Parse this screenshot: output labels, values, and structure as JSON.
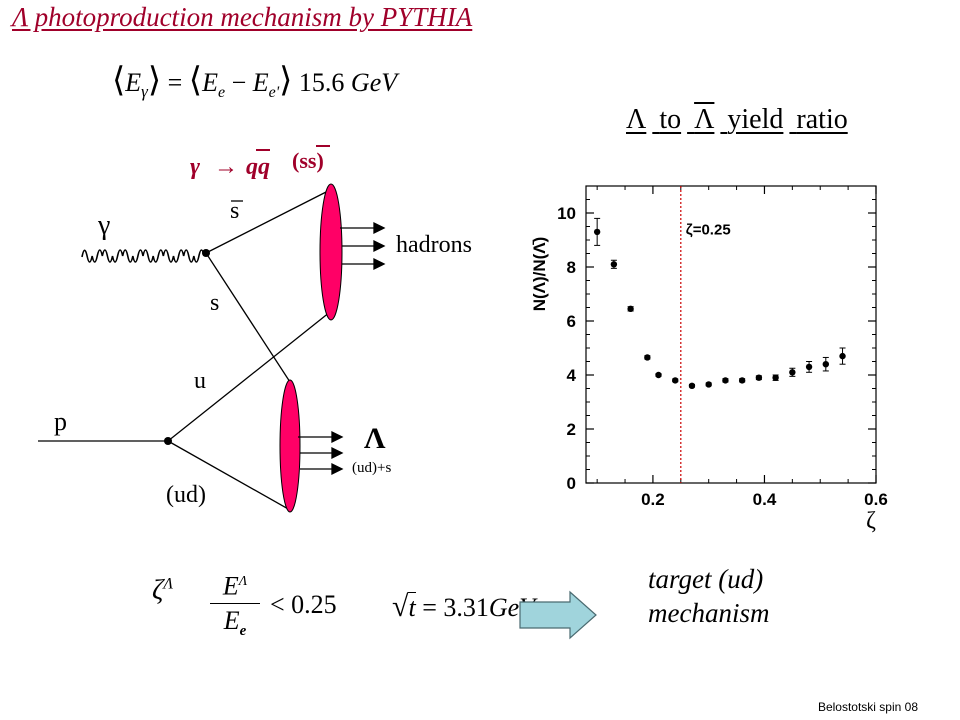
{
  "title": "Λ photoproduction mechanism by PYTHIA",
  "energy_equation": {
    "lhs_lbracket": "⟨",
    "lhs_E": "E",
    "lhs_sub": "γ",
    "rbracket1": "⟩",
    "equals": " = ",
    "rhs_lbracket": "⟨",
    "rhs_Ee": "E",
    "rhs_e_sub": "e",
    "minus": " − ",
    "rhs_Eep": "E",
    "rhs_ep_sub": "e'",
    "rbracket2": "⟩",
    "approx": "",
    "value": " 15.6",
    "unit": " GeV"
  },
  "diagram": {
    "process_gamma": "γ",
    "process_arrow": "→",
    "process_qq": "qq",
    "process_ss": "(ss)",
    "photon_label": "γ",
    "sbar_label": "s",
    "s_label": "s",
    "u_label": "u",
    "proton_label": "p",
    "ud_label": "(ud)",
    "hadrons_label": "hadrons",
    "lambda_label": "Λ",
    "lambda_content": "(ud)+s",
    "photon_color": "#000000",
    "ellipse_color": "#ff0066"
  },
  "ratio_heading": {
    "w1": "Λ",
    "w2": "to",
    "w3": "Λ",
    "w4": "yield",
    "w5": "ratio"
  },
  "chart_data": {
    "type": "scatter",
    "ylabel": "N(Λ)/N(Λ̄)",
    "xlabel": "ζ",
    "xlim": [
      0.08,
      0.6
    ],
    "ylim": [
      0,
      11
    ],
    "xticks": [
      0.2,
      0.4,
      0.6
    ],
    "xtick_labels": [
      "0.2",
      "0.4",
      "0.6"
    ],
    "yticks": [
      0,
      2,
      4,
      6,
      8,
      10
    ],
    "ytick_labels": [
      "0",
      "2",
      "4",
      "6",
      "8",
      "10"
    ],
    "cut_line": {
      "x": 0.25,
      "label": "ζ=0.25",
      "color": "#cc0000"
    },
    "points": [
      {
        "x": 0.1,
        "y": 9.3,
        "err": 0.5
      },
      {
        "x": 0.13,
        "y": 8.1,
        "err": 0.15
      },
      {
        "x": 0.16,
        "y": 6.45,
        "err": 0.08
      },
      {
        "x": 0.19,
        "y": 4.65,
        "err": 0.06
      },
      {
        "x": 0.21,
        "y": 4.0,
        "err": 0.05
      },
      {
        "x": 0.24,
        "y": 3.8,
        "err": 0.05
      },
      {
        "x": 0.27,
        "y": 3.6,
        "err": 0.05
      },
      {
        "x": 0.3,
        "y": 3.65,
        "err": 0.05
      },
      {
        "x": 0.33,
        "y": 3.8,
        "err": 0.06
      },
      {
        "x": 0.36,
        "y": 3.8,
        "err": 0.06
      },
      {
        "x": 0.39,
        "y": 3.9,
        "err": 0.07
      },
      {
        "x": 0.42,
        "y": 3.9,
        "err": 0.1
      },
      {
        "x": 0.45,
        "y": 4.1,
        "err": 0.15
      },
      {
        "x": 0.48,
        "y": 4.3,
        "err": 0.2
      },
      {
        "x": 0.51,
        "y": 4.4,
        "err": 0.25
      },
      {
        "x": 0.54,
        "y": 4.7,
        "err": 0.3
      }
    ]
  },
  "cut_equation": {
    "zeta": "ζ",
    "zeta_sup": "Λ",
    "approx": "",
    "num": "E",
    "num_sup": "Λ",
    "den": "E",
    "den_sub": "e",
    "lt": "< 0.25",
    "t": "t",
    "t_value": " = 3.31",
    "unit": "GeV"
  },
  "conclusion": {
    "line1": "target (ud)",
    "line2": "mechanism"
  },
  "arrow_color": "#a0d4dc",
  "footer": "Belostotski spin 08"
}
